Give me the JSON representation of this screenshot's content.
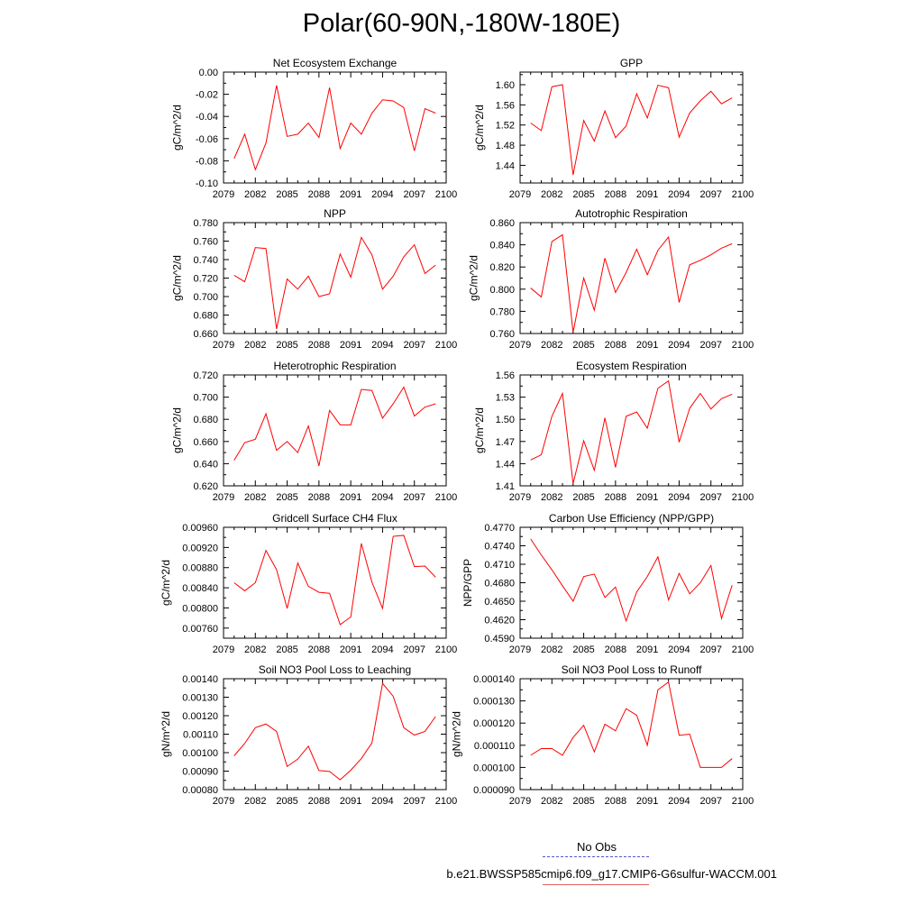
{
  "page": {
    "title": "Polar(60-90N,-180W-180E)"
  },
  "legend": {
    "items": [
      {
        "label": "No Obs",
        "color": "#5555cc",
        "style": "dashed"
      },
      {
        "label": "b.e21.BWSSP585cmip6.f09_g17.CMIP6-G6sulfur-WACCM.001",
        "color": "#e06060",
        "style": "solid"
      }
    ]
  },
  "colors": {
    "series": "#ff0000",
    "axis": "#000000"
  },
  "chart_data": [
    {
      "type": "line",
      "title": "Net Ecosystem Exchange",
      "ylabel": "gC/m^2/d",
      "xlim": [
        2079,
        2100
      ],
      "xticks": [
        "2079",
        "2082",
        "2085",
        "2088",
        "2091",
        "2094",
        "2097",
        "2100"
      ],
      "ylim": [
        -0.1,
        0.0
      ],
      "yticks": [
        "-0.10",
        "-0.08",
        "-0.06",
        "-0.04",
        "-0.02",
        "0.00"
      ],
      "x": [
        2080,
        2081,
        2082,
        2083,
        2084,
        2085,
        2086,
        2087,
        2088,
        2089,
        2090,
        2091,
        2092,
        2093,
        2094,
        2095,
        2096,
        2097,
        2098,
        2099
      ],
      "series": [
        {
          "values": [
            -0.078,
            -0.056,
            -0.088,
            -0.064,
            -0.012,
            -0.058,
            -0.056,
            -0.046,
            -0.059,
            -0.014,
            -0.069,
            -0.046,
            -0.056,
            -0.037,
            -0.025,
            -0.026,
            -0.032,
            -0.071,
            -0.033,
            -0.037
          ]
        }
      ]
    },
    {
      "type": "line",
      "title": "GPP",
      "ylabel": "gC/m^2/d",
      "xlim": [
        2079,
        2100
      ],
      "xticks": [
        "2079",
        "2082",
        "2085",
        "2088",
        "2091",
        "2094",
        "2097",
        "2100"
      ],
      "ylim": [
        1.405,
        1.625
      ],
      "yticks": [
        "1.44",
        "1.48",
        "1.52",
        "1.56",
        "1.60"
      ],
      "x": [
        2080,
        2081,
        2082,
        2083,
        2084,
        2085,
        2086,
        2087,
        2088,
        2089,
        2090,
        2091,
        2092,
        2093,
        2094,
        2095,
        2096,
        2097,
        2098,
        2099
      ],
      "series": [
        {
          "values": [
            1.524,
            1.509,
            1.596,
            1.6,
            1.421,
            1.529,
            1.488,
            1.548,
            1.495,
            1.518,
            1.582,
            1.534,
            1.599,
            1.594,
            1.496,
            1.544,
            1.568,
            1.587,
            1.562,
            1.574
          ]
        }
      ]
    },
    {
      "type": "line",
      "title": "NPP",
      "ylabel": "gC/m^2/d",
      "xlim": [
        2079,
        2100
      ],
      "xticks": [
        "2079",
        "2082",
        "2085",
        "2088",
        "2091",
        "2094",
        "2097",
        "2100"
      ],
      "ylim": [
        0.66,
        0.78
      ],
      "yticks": [
        "0.660",
        "0.680",
        "0.700",
        "0.720",
        "0.740",
        "0.760",
        "0.780"
      ],
      "x": [
        2080,
        2081,
        2082,
        2083,
        2084,
        2085,
        2086,
        2087,
        2088,
        2089,
        2090,
        2091,
        2092,
        2093,
        2094,
        2095,
        2096,
        2097,
        2098,
        2099
      ],
      "series": [
        {
          "values": [
            0.723,
            0.716,
            0.753,
            0.752,
            0.665,
            0.719,
            0.708,
            0.722,
            0.7,
            0.703,
            0.746,
            0.721,
            0.764,
            0.745,
            0.708,
            0.722,
            0.743,
            0.756,
            0.725,
            0.734
          ]
        }
      ]
    },
    {
      "type": "line",
      "title": "Autotrophic Respiration",
      "ylabel": "gC/m^2/d",
      "xlim": [
        2079,
        2100
      ],
      "xticks": [
        "2079",
        "2082",
        "2085",
        "2088",
        "2091",
        "2094",
        "2097",
        "2100"
      ],
      "ylim": [
        0.76,
        0.86
      ],
      "yticks": [
        "0.760",
        "0.780",
        "0.800",
        "0.820",
        "0.840",
        "0.860"
      ],
      "x": [
        2080,
        2081,
        2082,
        2083,
        2084,
        2085,
        2086,
        2087,
        2088,
        2089,
        2090,
        2091,
        2092,
        2093,
        2094,
        2095,
        2096,
        2097,
        2098,
        2099
      ],
      "series": [
        {
          "values": [
            0.801,
            0.793,
            0.843,
            0.849,
            0.761,
            0.81,
            0.781,
            0.828,
            0.797,
            0.815,
            0.836,
            0.813,
            0.835,
            0.847,
            0.788,
            0.822,
            0.826,
            0.831,
            0.837,
            0.841
          ]
        }
      ]
    },
    {
      "type": "line",
      "title": "Heterotrophic Respiration",
      "ylabel": "gC/m^2/d",
      "xlim": [
        2079,
        2100
      ],
      "xticks": [
        "2079",
        "2082",
        "2085",
        "2088",
        "2091",
        "2094",
        "2097",
        "2100"
      ],
      "ylim": [
        0.62,
        0.72
      ],
      "yticks": [
        "0.620",
        "0.640",
        "0.660",
        "0.680",
        "0.700",
        "0.720"
      ],
      "x": [
        2080,
        2081,
        2082,
        2083,
        2084,
        2085,
        2086,
        2087,
        2088,
        2089,
        2090,
        2091,
        2092,
        2093,
        2094,
        2095,
        2096,
        2097,
        2098,
        2099
      ],
      "series": [
        {
          "values": [
            0.643,
            0.659,
            0.662,
            0.685,
            0.652,
            0.66,
            0.65,
            0.674,
            0.638,
            0.688,
            0.675,
            0.675,
            0.707,
            0.706,
            0.681,
            0.694,
            0.709,
            0.683,
            0.691,
            0.694
          ]
        }
      ]
    },
    {
      "type": "line",
      "title": "Ecosystem Respiration",
      "ylabel": "gC/m^2/d",
      "xlim": [
        2079,
        2100
      ],
      "xticks": [
        "2079",
        "2082",
        "2085",
        "2088",
        "2091",
        "2094",
        "2097",
        "2100"
      ],
      "ylim": [
        1.41,
        1.56
      ],
      "yticks": [
        "1.41",
        "1.44",
        "1.47",
        "1.50",
        "1.53",
        "1.56"
      ],
      "x": [
        2080,
        2081,
        2082,
        2083,
        2084,
        2085,
        2086,
        2087,
        2088,
        2089,
        2090,
        2091,
        2092,
        2093,
        2094,
        2095,
        2096,
        2097,
        2098,
        2099
      ],
      "series": [
        {
          "values": [
            1.445,
            1.452,
            1.504,
            1.535,
            1.413,
            1.471,
            1.431,
            1.502,
            1.435,
            1.504,
            1.51,
            1.488,
            1.542,
            1.552,
            1.469,
            1.515,
            1.535,
            1.514,
            1.528,
            1.534
          ]
        }
      ]
    },
    {
      "type": "line",
      "title": "Gridcell Surface CH4 Flux",
      "ylabel": "gC/m^2/d",
      "xlim": [
        2079,
        2100
      ],
      "xticks": [
        "2079",
        "2082",
        "2085",
        "2088",
        "2091",
        "2094",
        "2097",
        "2100"
      ],
      "ylim": [
        0.0074,
        0.0096
      ],
      "yticks": [
        "0.00760",
        "0.00800",
        "0.00840",
        "0.00880",
        "0.00920",
        "0.00960"
      ],
      "x": [
        2080,
        2081,
        2082,
        2083,
        2084,
        2085,
        2086,
        2087,
        2088,
        2089,
        2090,
        2091,
        2092,
        2093,
        2094,
        2095,
        2096,
        2097,
        2098,
        2099
      ],
      "series": [
        {
          "values": [
            0.0085,
            0.00834,
            0.0085,
            0.00914,
            0.00876,
            0.00799,
            0.00889,
            0.00843,
            0.00831,
            0.00829,
            0.00767,
            0.00782,
            0.00928,
            0.00851,
            0.00799,
            0.00942,
            0.00944,
            0.00882,
            0.00883,
            0.00861
          ]
        }
      ]
    },
    {
      "type": "line",
      "title": "Carbon Use Efficiency (NPP/GPP)",
      "ylabel": "NPP/GPP",
      "xlim": [
        2079,
        2100
      ],
      "xticks": [
        "2079",
        "2082",
        "2085",
        "2088",
        "2091",
        "2094",
        "2097",
        "2100"
      ],
      "ylim": [
        0.459,
        0.477
      ],
      "yticks": [
        "0.4590",
        "0.4620",
        "0.4650",
        "0.4680",
        "0.4710",
        "0.4740",
        "0.4770"
      ],
      "x": [
        2080,
        2081,
        2082,
        2083,
        2084,
        2085,
        2086,
        2087,
        2088,
        2089,
        2090,
        2091,
        2092,
        2093,
        2094,
        2095,
        2096,
        2097,
        2098,
        2099
      ],
      "series": [
        {
          "values": [
            0.4751,
            0.4725,
            0.4701,
            0.4675,
            0.465,
            0.469,
            0.4694,
            0.4656,
            0.4673,
            0.4618,
            0.4665,
            0.469,
            0.4722,
            0.4652,
            0.4695,
            0.4662,
            0.468,
            0.4708,
            0.4622,
            0.4676
          ]
        }
      ]
    },
    {
      "type": "line",
      "title": "Soil NO3 Pool Loss to Leaching",
      "ylabel": "gN/m^2/d",
      "xlim": [
        2079,
        2100
      ],
      "xticks": [
        "2079",
        "2082",
        "2085",
        "2088",
        "2091",
        "2094",
        "2097",
        "2100"
      ],
      "ylim": [
        0.0008,
        0.0014
      ],
      "yticks": [
        "0.00080",
        "0.00090",
        "0.00100",
        "0.00110",
        "0.00120",
        "0.00130",
        "0.00140"
      ],
      "x": [
        2080,
        2081,
        2082,
        2083,
        2084,
        2085,
        2086,
        2087,
        2088,
        2089,
        2090,
        2091,
        2092,
        2093,
        2094,
        2095,
        2096,
        2097,
        2098,
        2099
      ],
      "series": [
        {
          "values": [
            0.000983,
            0.00105,
            0.001135,
            0.001155,
            0.001115,
            0.000925,
            0.000965,
            0.001035,
            0.000903,
            0.000898,
            0.000853,
            0.000905,
            0.000968,
            0.001053,
            0.001375,
            0.001305,
            0.001135,
            0.001095,
            0.001115,
            0.001195
          ]
        }
      ]
    },
    {
      "type": "line",
      "title": "Soil NO3 Pool Loss to Runoff",
      "ylabel": "gN/m^2/d",
      "xlim": [
        2079,
        2100
      ],
      "xticks": [
        "2079",
        "2082",
        "2085",
        "2088",
        "2091",
        "2094",
        "2097",
        "2100"
      ],
      "ylim": [
        9e-05,
        0.00014
      ],
      "yticks": [
        "0.000090",
        "0.000100",
        "0.000110",
        "0.000120",
        "0.000130",
        "0.000140"
      ],
      "x": [
        2080,
        2081,
        2082,
        2083,
        2084,
        2085,
        2086,
        2087,
        2088,
        2089,
        2090,
        2091,
        2092,
        2093,
        2094,
        2095,
        2096,
        2097,
        2098,
        2099
      ],
      "series": [
        {
          "values": [
            0.0001055,
            0.0001085,
            0.0001085,
            0.0001055,
            0.0001135,
            0.000119,
            0.000107,
            0.0001195,
            0.0001165,
            0.0001265,
            0.0001235,
            0.00011,
            0.000135,
            0.0001385,
            0.0001145,
            0.000115,
            0.0001,
            0.0001,
            0.0001,
            0.000104
          ]
        }
      ]
    }
  ]
}
